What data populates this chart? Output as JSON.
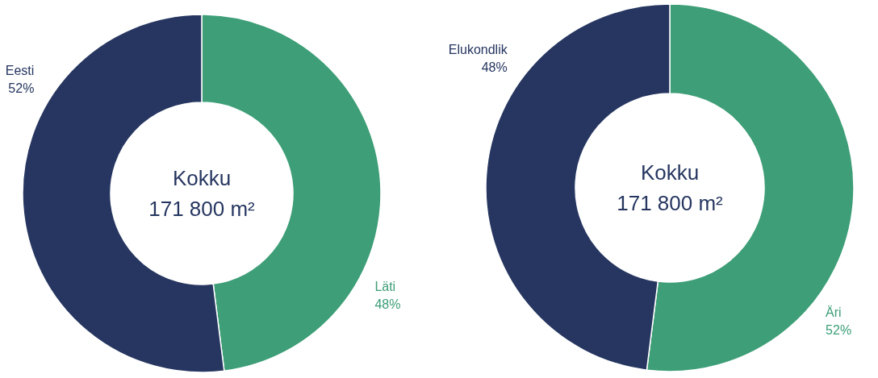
{
  "chart_data": [
    {
      "type": "donut",
      "categories": [
        "Läti",
        "Eesti"
      ],
      "values": [
        48,
        52
      ],
      "value_labels": [
        "48%",
        "52%"
      ],
      "colors": [
        "#3d9e77",
        "#263660"
      ],
      "annotations": [
        "Kokku",
        "171 800 m²"
      ]
    },
    {
      "type": "donut",
      "categories": [
        "Äri",
        "Elukondlik"
      ],
      "values": [
        52,
        48
      ],
      "value_labels": [
        "52%",
        "48%"
      ],
      "colors": [
        "#3d9e77",
        "#263660"
      ],
      "annotations": [
        "Kokku",
        "171 800 m²"
      ]
    }
  ]
}
